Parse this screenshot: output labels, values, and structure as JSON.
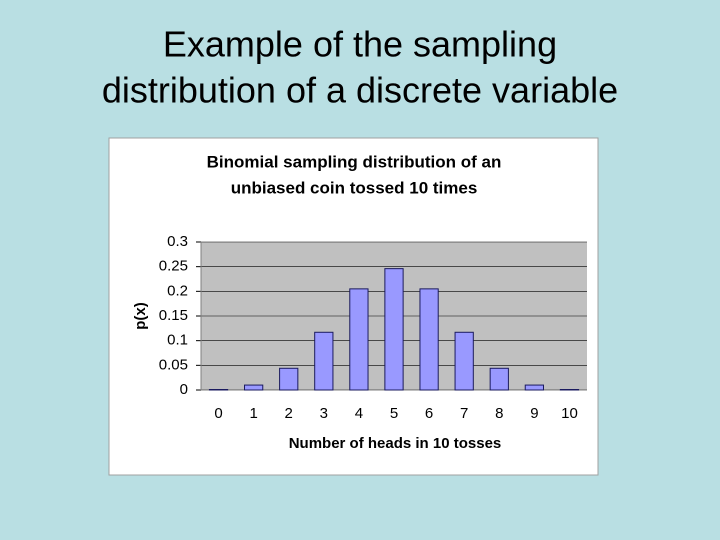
{
  "slide_title": [
    "Example of the sampling",
    "distribution of a discrete variable"
  ],
  "chart_data": {
    "type": "bar",
    "title": [
      "Binomial sampling distribution of an",
      "unbiased coin tossed 10 times"
    ],
    "x_label": "Number of heads in 10 tosses",
    "y_label": "p(x)",
    "categories": [
      "0",
      "1",
      "2",
      "3",
      "4",
      "5",
      "6",
      "7",
      "8",
      "9",
      "10"
    ],
    "values": [
      0.001,
      0.01,
      0.044,
      0.117,
      0.205,
      0.246,
      0.205,
      0.117,
      0.044,
      0.01,
      0.001
    ],
    "color": "#9999ff",
    "ylim": [
      0,
      0.3
    ],
    "yticks": [
      0,
      0.05,
      0.1,
      0.15,
      0.2,
      0.25,
      0.3
    ],
    "grid": true
  }
}
